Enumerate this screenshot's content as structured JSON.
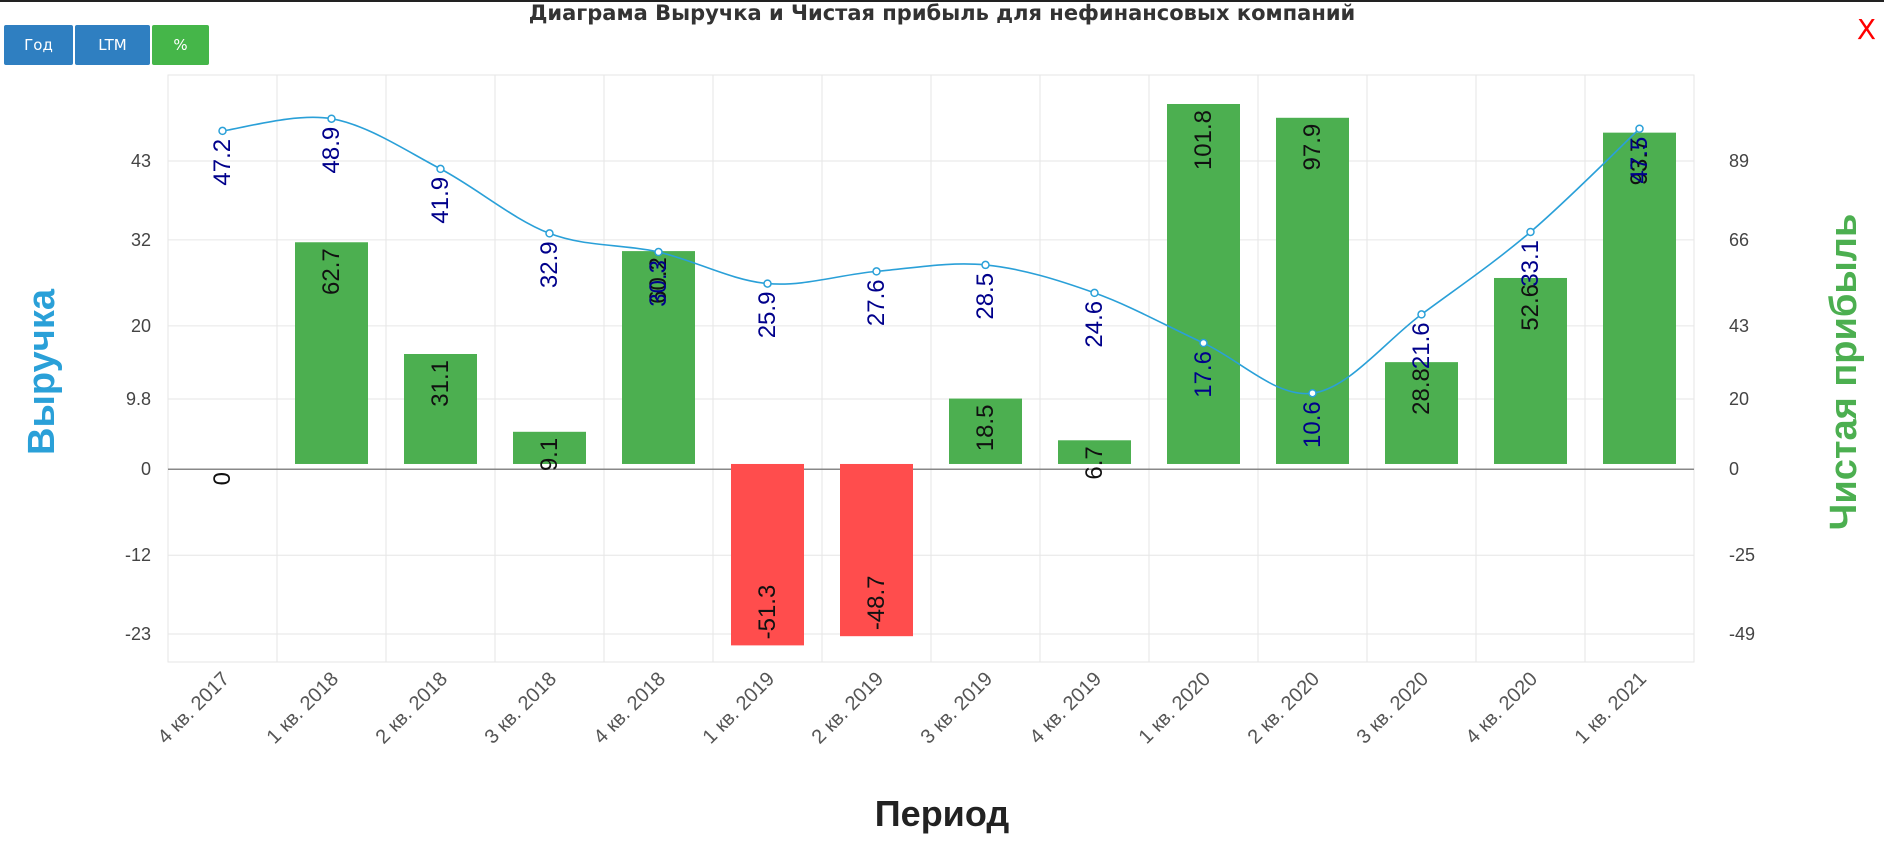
{
  "title": "Диаграма Выручка и Чистая прибыль для нефинансовых компаний",
  "close_label": "X",
  "buttons": {
    "year": "Год",
    "ltm": "LTM",
    "percent": "%"
  },
  "colors": {
    "revenue_line": "#2aa0d8",
    "revenue_label": "#00008b",
    "profit_positive": "#4caf50",
    "profit_negative": "#ff4d4d",
    "left_axis_title": "#2aa0d8",
    "right_axis_title": "#4caf50",
    "grid": "#e6e6e6"
  },
  "chart_data": {
    "type": "bar",
    "title": "Диаграма Выручка и Чистая прибыль для нефинансовых компаний",
    "xlabel": "Период",
    "ylabel": "Выручка",
    "y2label": "Чистая прибыль",
    "grid": true,
    "categories": [
      "4 кв. 2017",
      "1 кв. 2018",
      "2 кв. 2018",
      "3 кв. 2018",
      "4 кв. 2018",
      "1 кв. 2019",
      "2 кв. 2019",
      "3 кв. 2019",
      "4 кв. 2019",
      "1 кв. 2020",
      "2 кв. 2020",
      "3 кв. 2020",
      "4 кв. 2020",
      "1 кв. 2021"
    ],
    "left_axis": {
      "ticks": [
        "43",
        "32",
        "20",
        "9.8",
        "0",
        "-12",
        "-23"
      ],
      "ylim": [
        -26.9,
        55
      ]
    },
    "right_axis": {
      "ticks": [
        "89",
        "66",
        "43",
        "20",
        "0",
        "-25",
        "-49"
      ],
      "ylim": [
        -56,
        110
      ]
    },
    "series": [
      {
        "name": "Выручка",
        "type": "line",
        "axis": "left",
        "values": [
          47.2,
          48.9,
          41.9,
          32.9,
          30.3,
          25.9,
          27.6,
          28.5,
          24.6,
          17.6,
          10.6,
          21.6,
          33.1,
          47.5
        ],
        "labels": [
          "47.2",
          "48.9",
          "41.9",
          "32.9",
          "30.3",
          "25.9",
          "27.6",
          "28.5",
          "24.6",
          "17.6",
          "10.6",
          "21.6",
          "33.1",
          "47.5"
        ]
      },
      {
        "name": "Чистая прибыль",
        "type": "bar",
        "axis": "right",
        "values": [
          0,
          62.7,
          31.1,
          9.1,
          60.2,
          -51.3,
          -48.7,
          18.5,
          6.7,
          101.8,
          97.9,
          28.8,
          52.6,
          93.7
        ],
        "labels": [
          "0",
          "62.7",
          "31.1",
          "9.1",
          "60.2",
          "-51.3",
          "-48.7",
          "18.5",
          "6.7",
          "101.8",
          "97.9",
          "28.8",
          "52.6",
          "93.7"
        ]
      }
    ]
  }
}
